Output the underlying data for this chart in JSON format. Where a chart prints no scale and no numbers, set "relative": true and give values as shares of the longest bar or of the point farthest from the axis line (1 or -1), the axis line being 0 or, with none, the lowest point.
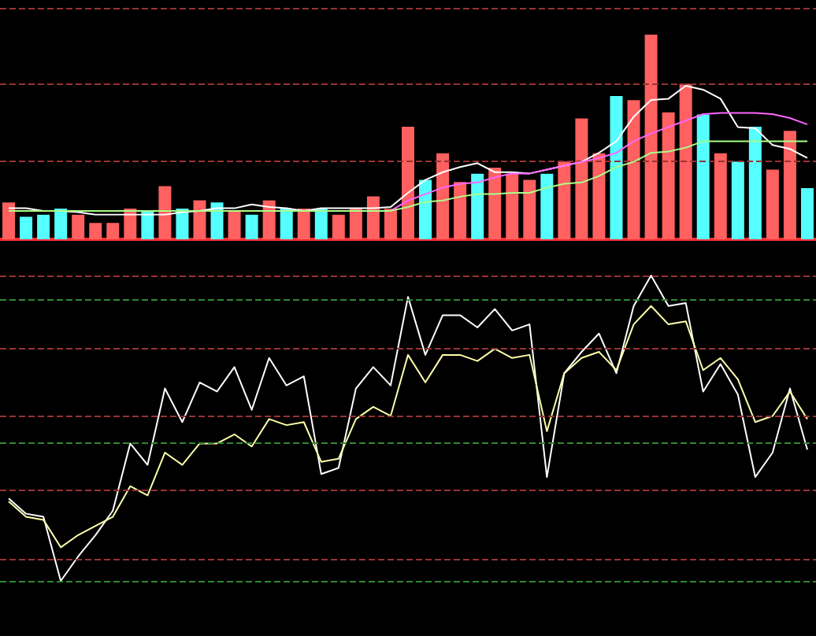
{
  "chart_data": [
    {
      "type": "bar",
      "relative": true,
      "categories": [
        null,
        null,
        null,
        null,
        null,
        null,
        null,
        null,
        null,
        null,
        null,
        null,
        null,
        null,
        null,
        null,
        null,
        null,
        null,
        null,
        null,
        null,
        null,
        null,
        null,
        null,
        null,
        null,
        null,
        null,
        null,
        null,
        null,
        null,
        null,
        null,
        null,
        null,
        null,
        null,
        null,
        null,
        null,
        null,
        null,
        null,
        null
      ],
      "values": [
        0.18,
        0.11,
        0.12,
        0.15,
        0.12,
        0.08,
        0.08,
        0.15,
        0.14,
        0.26,
        0.15,
        0.19,
        0.18,
        0.14,
        0.12,
        0.19,
        0.15,
        0.15,
        0.15,
        0.12,
        0.15,
        0.21,
        0.15,
        0.55,
        0.29,
        0.42,
        0.28,
        0.32,
        0.35,
        0.32,
        0.29,
        0.32,
        0.38,
        0.59,
        0.42,
        0.7,
        0.68,
        1,
        0.62,
        0.76,
        0.61,
        0.42,
        0.38,
        0.55,
        0.34,
        0.53,
        0.25
      ],
      "colors": [
        "#ff6060",
        "#55ffff",
        "#55ffff",
        "#55ffff",
        "#ff6060",
        "#ff6060",
        "#ff6060",
        "#ff6060",
        "#55ffff",
        "#ff6060",
        "#55ffff",
        "#ff6060",
        "#55ffff",
        "#ff6060",
        "#55ffff",
        "#ff6060",
        "#55ffff",
        "#ff6060",
        "#55ffff",
        "#ff6060",
        "#ff6060",
        "#ff6060",
        "#ff6060",
        "#ff6060",
        "#55ffff",
        "#ff6060",
        "#ff6060",
        "#55ffff",
        "#ff6060",
        "#ff6060",
        "#ff6060",
        "#55ffff",
        "#ff6060",
        "#ff6060",
        "#ff6060",
        "#55ffff",
        "#ff6060",
        "#ff6060",
        "#ff6060",
        "#ff6060",
        "#55ffff",
        "#ff6060",
        "#55ffff",
        "#55ffff",
        "#ff6060",
        "#ff6060",
        "#55ffff"
      ],
      "ref_lines": [
        {
          "axis": "y",
          "value": 0.38,
          "color": "#993333",
          "line_style": "dashed"
        },
        {
          "axis": "y",
          "value": 0.76,
          "color": "#993333",
          "line_style": "dashed"
        },
        {
          "axis": "y",
          "value": 1.13,
          "color": "#993333",
          "line_style": "dashed"
        }
      ]
    },
    {
      "type": "line",
      "relative": true,
      "marker": "none",
      "categories": [
        null,
        null,
        null,
        null,
        null,
        null,
        null,
        null,
        null,
        null,
        null,
        null,
        null,
        null,
        null,
        null,
        null,
        null,
        null,
        null,
        null,
        null,
        null,
        null,
        null,
        null,
        null,
        null,
        null,
        null,
        null,
        null,
        null,
        null,
        null,
        null,
        null,
        null,
        null,
        null,
        null,
        null,
        null,
        null,
        null,
        null,
        null
      ],
      "series": [
        {
          "color": "#ffffff",
          "values": [
            0.05,
            0.05,
            0.03,
            0.03,
            0.02,
            0,
            0,
            0,
            0,
            0,
            0.02,
            0.03,
            0.05,
            0.05,
            0.08,
            0.06,
            0.05,
            0.03,
            0.05,
            0.05,
            0.05,
            0.05,
            0.06,
            0.17,
            0.27,
            0.33,
            0.37,
            0.4,
            0.33,
            0.33,
            0.32,
            0.35,
            0.38,
            0.41,
            0.48,
            0.57,
            0.76,
            0.89,
            0.9,
            1,
            0.97,
            0.9,
            0.68,
            0.67,
            0.54,
            0.51,
            0.44
          ]
        },
        {
          "color": "#ff66ff",
          "values": [
            null,
            null,
            null,
            null,
            null,
            null,
            null,
            null,
            null,
            null,
            null,
            null,
            null,
            null,
            null,
            null,
            null,
            null,
            null,
            null,
            null,
            0.03,
            0.03,
            0.11,
            0.16,
            0.21,
            0.24,
            0.25,
            0.29,
            0.32,
            0.32,
            0.35,
            0.38,
            0.41,
            0.44,
            0.48,
            0.57,
            0.63,
            0.68,
            0.73,
            0.78,
            0.79,
            0.79,
            0.79,
            0.78,
            0.75,
            0.7
          ]
        },
        {
          "color": "#aaff88",
          "values": [
            0.03,
            0.03,
            0.03,
            0.03,
            0.03,
            0.03,
            0.03,
            0.03,
            0.03,
            0.03,
            0.03,
            0.03,
            0.03,
            0.03,
            0.03,
            0.03,
            0.03,
            0.03,
            0.03,
            0.03,
            0.03,
            0.03,
            0.03,
            0.06,
            0.1,
            0.11,
            0.14,
            0.16,
            0.16,
            0.17,
            0.17,
            0.21,
            0.24,
            0.25,
            0.3,
            0.37,
            0.41,
            0.48,
            0.49,
            0.52,
            0.57,
            0.57,
            0.57,
            0.57,
            0.57,
            0.57,
            0.57
          ]
        }
      ]
    },
    {
      "type": "line",
      "relative": true,
      "marker": "none",
      "categories": [
        null,
        null,
        null,
        null,
        null,
        null,
        null,
        null,
        null,
        null,
        null,
        null,
        null,
        null,
        null,
        null,
        null,
        null,
        null,
        null,
        null,
        null,
        null,
        null,
        null,
        null,
        null,
        null,
        null,
        null,
        null,
        null,
        null,
        null,
        null,
        null,
        null,
        null,
        null,
        null,
        null,
        null,
        null,
        null,
        null,
        null,
        null
      ],
      "series": [
        {
          "color": "#ffffff",
          "values": [
            0.27,
            0.22,
            0.21,
            0,
            0.08,
            0.15,
            0.23,
            0.45,
            0.38,
            0.63,
            0.52,
            0.65,
            0.62,
            0.7,
            0.56,
            0.73,
            0.64,
            0.67,
            0.35,
            0.37,
            0.63,
            0.7,
            0.64,
            0.93,
            0.74,
            0.87,
            0.87,
            0.83,
            0.89,
            0.82,
            0.84,
            0.34,
            0.68,
            0.75,
            0.81,
            0.68,
            0.9,
            1,
            0.9,
            0.91,
            0.62,
            0.71,
            0.61,
            0.34,
            0.42,
            0.63,
            0.43
          ]
        },
        {
          "color": "#ffffaa",
          "values": [
            0.26,
            0.21,
            0.2,
            0.11,
            0.15,
            0.18,
            0.21,
            0.31,
            0.28,
            0.42,
            0.38,
            0.45,
            0.45,
            0.48,
            0.44,
            0.53,
            0.51,
            0.52,
            0.39,
            0.4,
            0.53,
            0.57,
            0.54,
            0.74,
            0.65,
            0.74,
            0.74,
            0.72,
            0.76,
            0.73,
            0.74,
            0.49,
            0.68,
            0.73,
            0.75,
            0.69,
            0.84,
            0.9,
            0.84,
            0.85,
            0.69,
            0.73,
            0.66,
            0.52,
            0.54,
            0.62,
            0.53
          ]
        }
      ],
      "ref_lines": [
        {
          "axis": "y",
          "value": 0,
          "color": "#338833",
          "line_style": "dashed"
        },
        {
          "axis": "y",
          "value": 0.07,
          "color": "#993333",
          "line_style": "dashed"
        },
        {
          "axis": "y",
          "value": 0.3,
          "color": "#993333",
          "line_style": "dashed"
        },
        {
          "axis": "y",
          "value": 0.45,
          "color": "#338833",
          "line_style": "dashed"
        },
        {
          "axis": "y",
          "value": 0.54,
          "color": "#993333",
          "line_style": "dashed"
        },
        {
          "axis": "y",
          "value": 0.76,
          "color": "#993333",
          "line_style": "dashed"
        },
        {
          "axis": "y",
          "value": 0.92,
          "color": "#338833",
          "line_style": "dashed"
        },
        {
          "axis": "y",
          "value": 1,
          "color": "#993333",
          "line_style": "dashed"
        }
      ]
    }
  ]
}
